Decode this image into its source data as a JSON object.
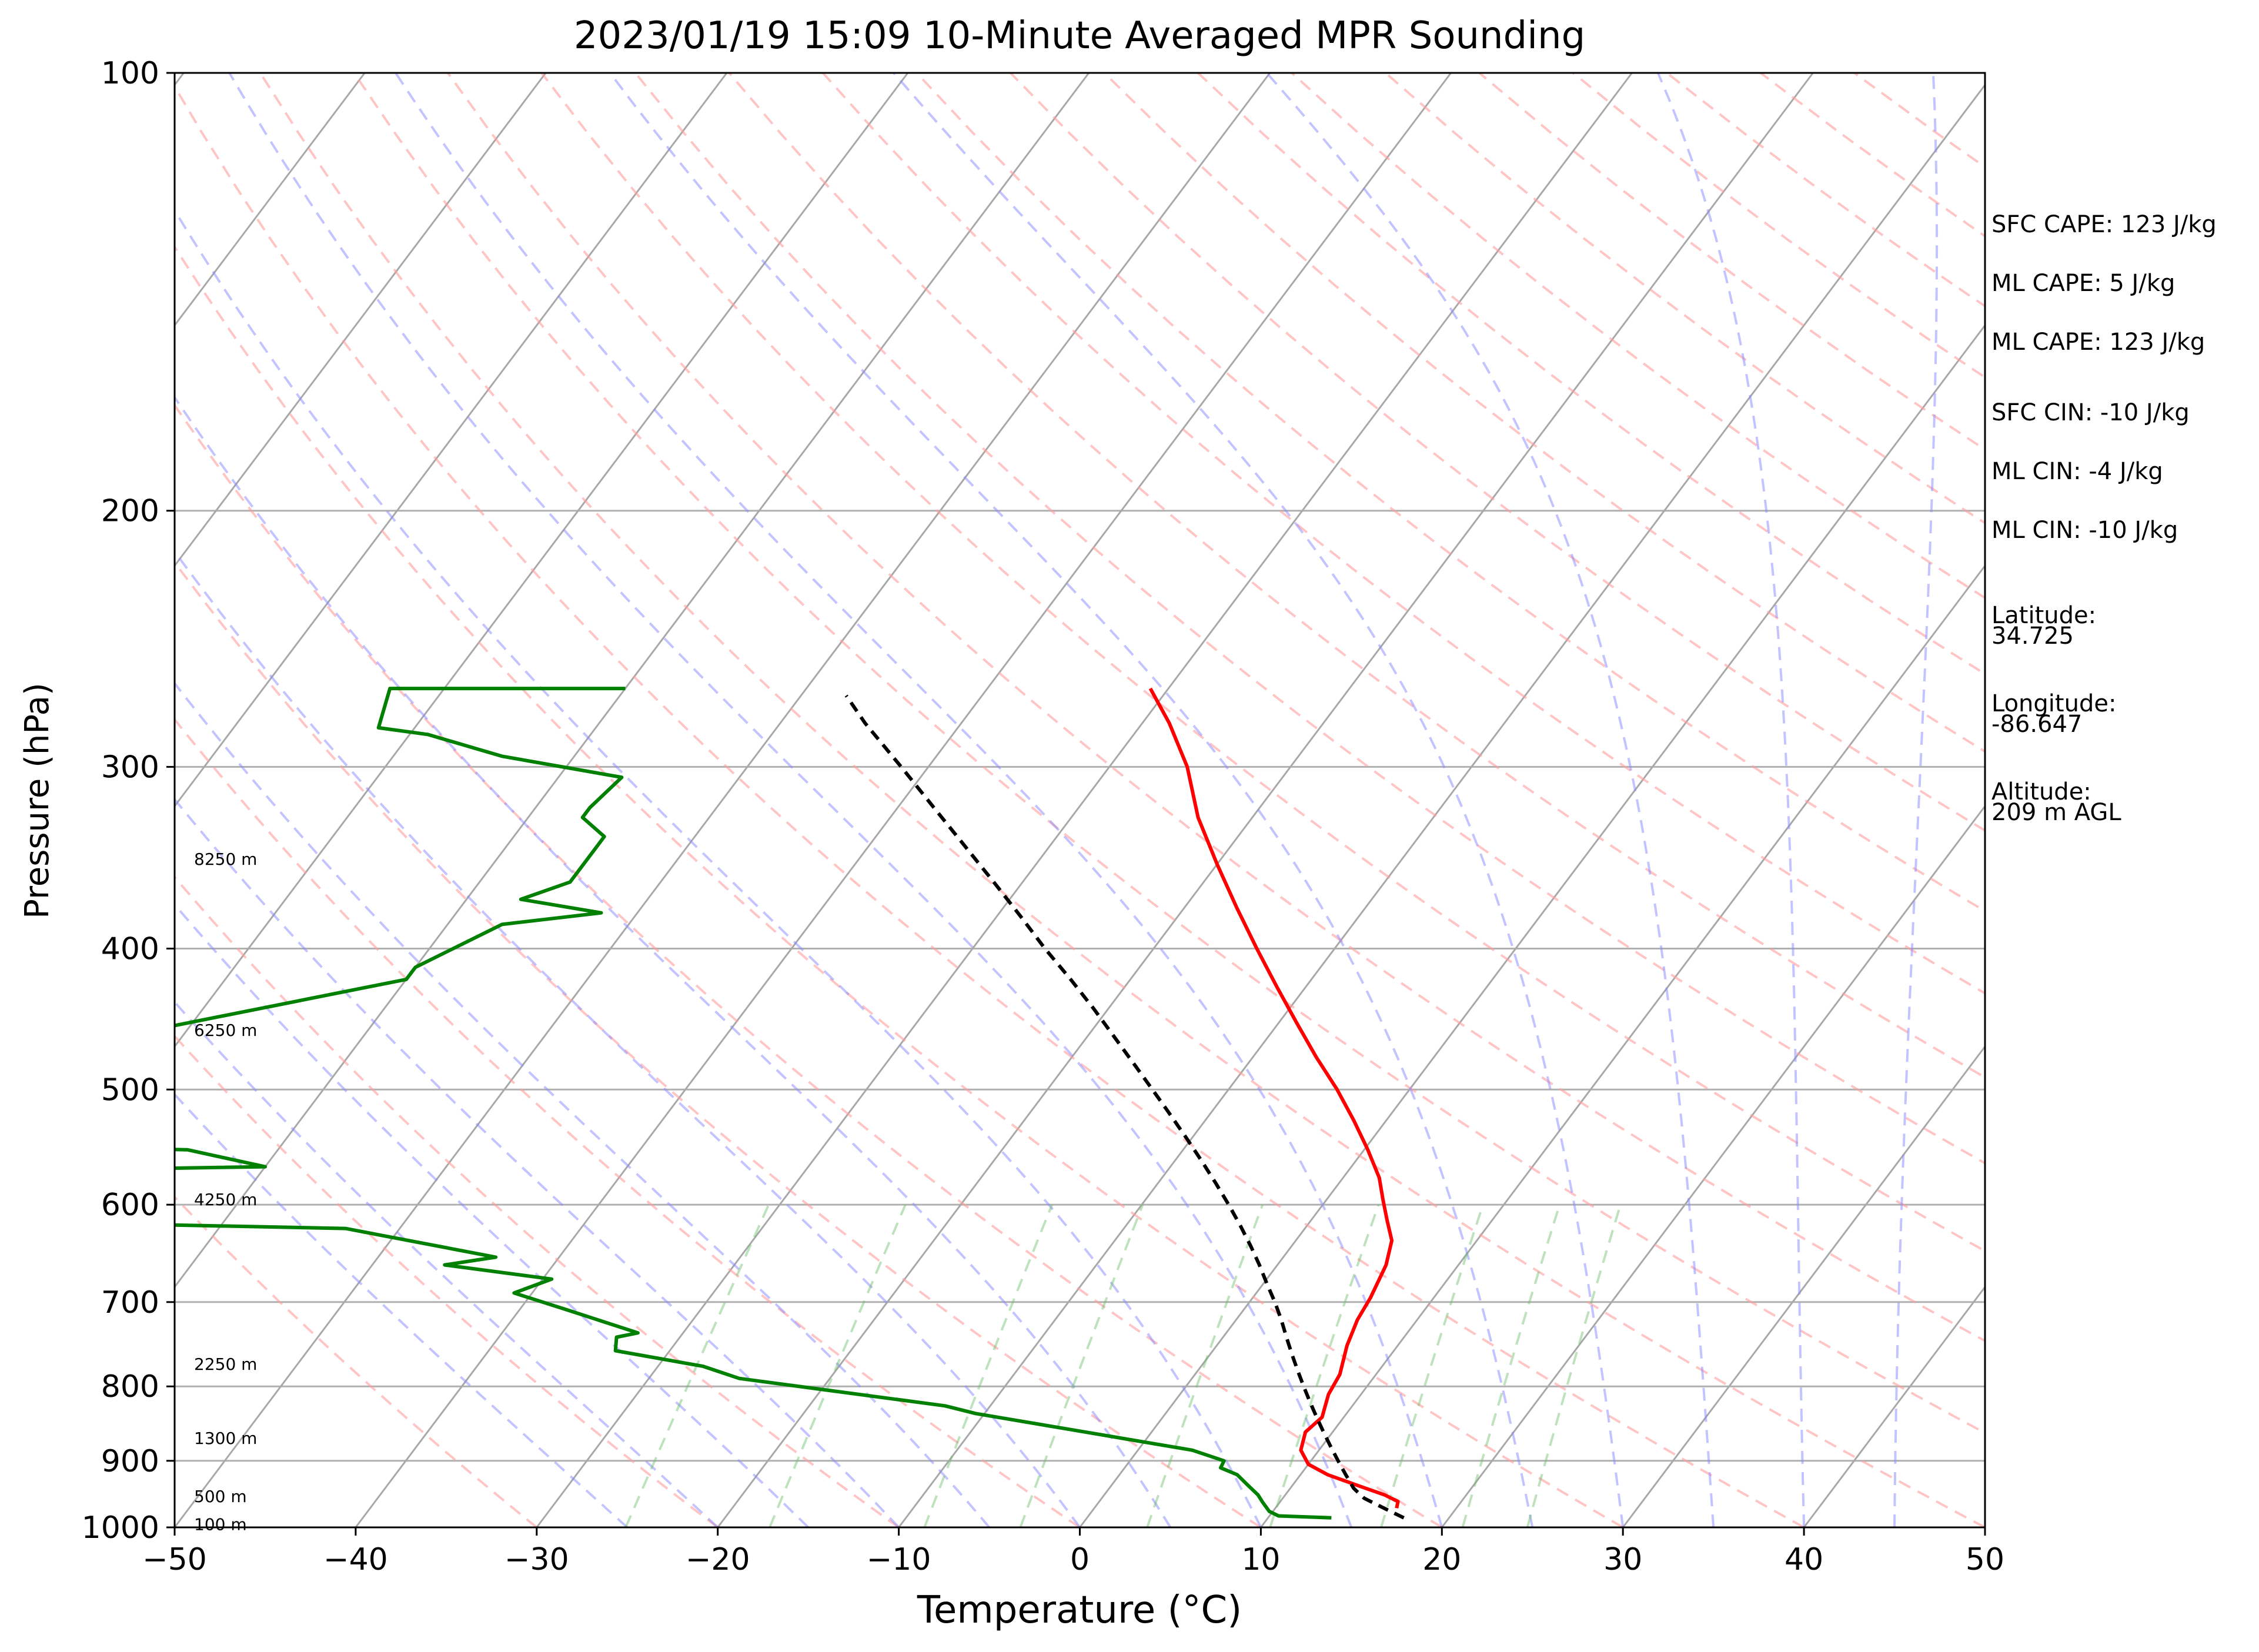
{
  "chart_data": {
    "type": "line",
    "title": "2023/01/19 15:09 10-Minute Averaged MPR Sounding",
    "xlabel": "Temperature (°C)",
    "ylabel": "Pressure (hPa)",
    "xlim": [
      -50,
      50
    ],
    "ylim": [
      1000,
      100
    ],
    "y_scale": "log",
    "x_ticks": [
      -50,
      -40,
      -30,
      -20,
      -10,
      0,
      10,
      20,
      30,
      40,
      50
    ],
    "y_ticks": [
      100,
      200,
      300,
      400,
      500,
      600,
      700,
      800,
      900,
      1000
    ],
    "grid": "horizontal at pressure ticks",
    "skew": "skew-T log-P",
    "series": [
      {
        "color": "#ff0000",
        "points": [
          [
            16.7,
            970
          ],
          [
            16.5,
            960
          ],
          [
            15.5,
            950
          ],
          [
            13.5,
            935
          ],
          [
            11.5,
            920
          ],
          [
            10,
            905
          ],
          [
            9,
            885
          ],
          [
            8.5,
            860
          ],
          [
            8.8,
            840
          ],
          [
            8.2,
            810
          ],
          [
            8,
            785
          ],
          [
            7.2,
            750
          ],
          [
            6.7,
            720
          ],
          [
            6.5,
            695
          ],
          [
            6.0,
            660
          ],
          [
            5.3,
            635
          ],
          [
            4.2,
            615
          ],
          [
            3.1,
            595
          ],
          [
            2.0,
            575
          ],
          [
            0.2,
            550
          ],
          [
            -1.8,
            525
          ],
          [
            -4.0,
            500
          ],
          [
            -6.5,
            475
          ],
          [
            -9.0,
            450
          ],
          [
            -11.6,
            425
          ],
          [
            -14.3,
            400
          ],
          [
            -17.1,
            375
          ],
          [
            -20,
            350
          ],
          [
            -23,
            325
          ],
          [
            -25.7,
            300
          ],
          [
            -28.5,
            280
          ],
          [
            -31.0,
            265
          ]
        ]
      },
      {
        "color": "#008000",
        "points": [
          [
            13.5,
            985
          ],
          [
            10.5,
            982
          ],
          [
            9.8,
            975
          ],
          [
            9.0,
            960
          ],
          [
            8.5,
            950
          ],
          [
            7.5,
            935
          ],
          [
            6.5,
            920
          ],
          [
            5.3,
            910
          ],
          [
            5.2,
            900
          ],
          [
            3.0,
            885
          ],
          [
            -5,
            855
          ],
          [
            -10.5,
            835
          ],
          [
            -12.5,
            825
          ],
          [
            -25,
            790
          ],
          [
            -27.5,
            775
          ],
          [
            -33,
            756
          ],
          [
            -33.5,
            740
          ],
          [
            -32.5,
            735
          ],
          [
            -37.5,
            708
          ],
          [
            -41,
            690
          ],
          [
            -39.5,
            675
          ],
          [
            -46,
            660
          ],
          [
            -43.5,
            652
          ],
          [
            -53,
            623
          ],
          [
            -70,
            617
          ],
          [
            -72,
            568
          ],
          [
            -60,
            565
          ],
          [
            -65,
            550
          ],
          [
            -71,
            548
          ],
          [
            -75,
            470
          ],
          [
            -74.5,
            463
          ],
          [
            -60,
            420
          ],
          [
            -60,
            412
          ],
          [
            -57,
            385
          ],
          [
            -52,
            378
          ],
          [
            -57,
            370
          ],
          [
            -55,
            360
          ],
          [
            -55,
            335
          ],
          [
            -57,
            325
          ],
          [
            -57,
            320
          ],
          [
            -56.5,
            305
          ],
          [
            -64,
            295
          ],
          [
            -69,
            285
          ],
          [
            -72,
            282
          ],
          [
            -73,
            265
          ],
          [
            -60,
            265
          ]
        ]
      },
      {
        "color": "#000000",
        "style": "dashed",
        "points": [
          [
            17.5,
            985
          ],
          [
            16,
            970
          ],
          [
            14.5,
            955
          ],
          [
            13.5,
            940
          ],
          [
            12.5,
            920
          ],
          [
            11.5,
            900
          ],
          [
            10.5,
            880
          ],
          [
            9.5,
            860
          ],
          [
            8.5,
            840
          ],
          [
            7.5,
            820
          ],
          [
            6.5,
            800
          ],
          [
            5.5,
            780
          ],
          [
            4.5,
            760
          ],
          [
            3.5,
            740
          ],
          [
            2.5,
            720
          ],
          [
            1.4,
            700
          ],
          [
            0.2,
            680
          ],
          [
            -1.0,
            660
          ],
          [
            -2.3,
            640
          ],
          [
            -3.7,
            620
          ],
          [
            -5.2,
            600
          ],
          [
            -6.8,
            580
          ],
          [
            -8.5,
            560
          ],
          [
            -10.3,
            540
          ],
          [
            -12.2,
            520
          ],
          [
            -14.2,
            500
          ],
          [
            -16.3,
            480
          ],
          [
            -18.5,
            460
          ],
          [
            -20.8,
            440
          ],
          [
            -23.3,
            420
          ],
          [
            -26,
            400
          ],
          [
            -28.7,
            380
          ],
          [
            -31.6,
            360
          ],
          [
            -34.7,
            340
          ],
          [
            -38,
            320
          ],
          [
            -41.5,
            300
          ],
          [
            -45.3,
            280
          ],
          [
            -47.5,
            268
          ]
        ]
      }
    ],
    "annotations": [
      {
        "text": "8250 m",
        "p": 347
      },
      {
        "text": "6250 m",
        "p": 455
      },
      {
        "text": "4250 m",
        "p": 595
      },
      {
        "text": "2250 m",
        "p": 772
      },
      {
        "text": "1300 m",
        "p": 868
      },
      {
        "text": "500 m",
        "p": 952
      },
      {
        "text": "100 m",
        "p": 995
      }
    ]
  },
  "info": {
    "sfc_cape": "SFC CAPE: 123 J/kg",
    "ml_cape_1": "ML CAPE: 5 J/kg",
    "ml_cape_2": "ML CAPE: 123 J/kg",
    "sfc_cin": "SFC CIN: -10 J/kg",
    "ml_cin_1": "ML CIN: -4 J/kg",
    "ml_cin_2": "ML CIN: -10 J/kg",
    "latitude_label": "Latitude:",
    "latitude_value": "34.725",
    "longitude_label": "Longitude:",
    "longitude_value": "-86.647",
    "altitude_label": "Altitude:",
    "altitude_value": "209 m AGL"
  }
}
